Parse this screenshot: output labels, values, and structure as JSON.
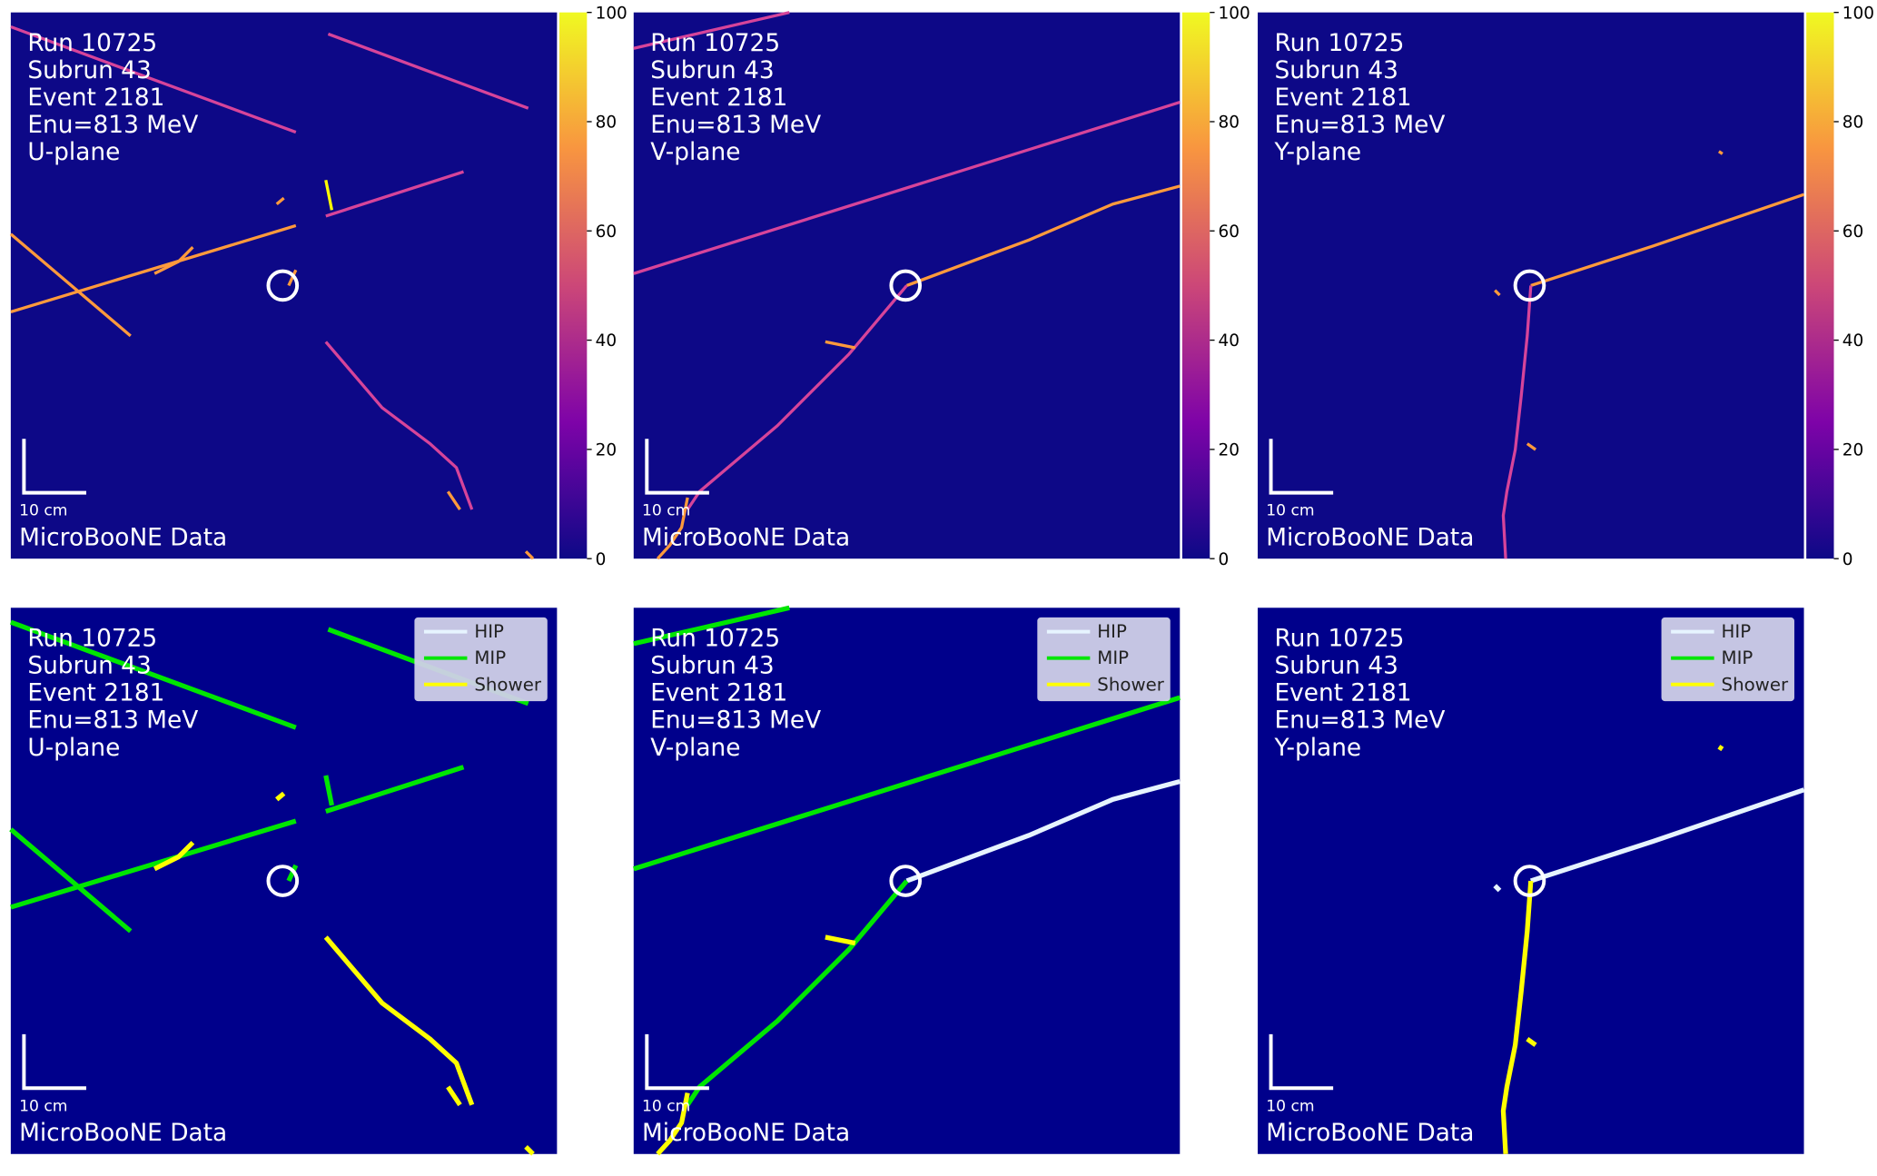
{
  "panels": [
    {
      "lines": [
        "Run 10725",
        "Subrun 43",
        "Event 2181",
        "Enu=813 MeV",
        "U-plane"
      ],
      "scale_label": "10 cm",
      "footer": "MicroBooNE Data"
    },
    {
      "lines": [
        "Run 10725",
        "Subrun 43",
        "Event 2181",
        "Enu=813 MeV",
        "V-plane"
      ],
      "scale_label": "10 cm",
      "footer": "MicroBooNE Data"
    },
    {
      "lines": [
        "Run 10725",
        "Subrun 43",
        "Event 2181",
        "Enu=813 MeV",
        "Y-plane"
      ],
      "scale_label": "10 cm",
      "footer": "MicroBooNE Data"
    },
    {
      "lines": [
        "Run 10725",
        "Subrun 43",
        "Event 2181",
        "Enu=813 MeV",
        "U-plane"
      ],
      "scale_label": "10 cm",
      "footer": "MicroBooNE Data"
    },
    {
      "lines": [
        "Run 10725",
        "Subrun 43",
        "Event 2181",
        "Enu=813 MeV",
        "V-plane"
      ],
      "scale_label": "10 cm",
      "footer": "MicroBooNE Data"
    },
    {
      "lines": [
        "Run 10725",
        "Subrun 43",
        "Event 2181",
        "Enu=813 MeV",
        "Y-plane"
      ],
      "scale_label": "10 cm",
      "footer": "MicroBooNE Data"
    }
  ],
  "colorbar": {
    "lim": [
      0,
      100
    ],
    "ticks": [
      0,
      20,
      40,
      60,
      80,
      100
    ]
  },
  "legend": [
    {
      "name": "HIP",
      "color": "#e6f4ff"
    },
    {
      "name": "MIP",
      "color": "#00e600"
    },
    {
      "name": "Shower",
      "color": "#ffff00"
    }
  ]
}
